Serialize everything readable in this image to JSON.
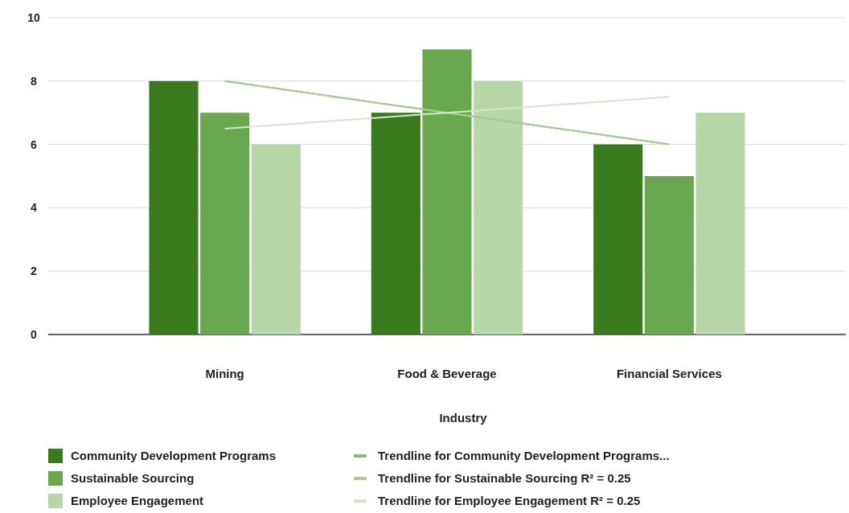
{
  "chart_data": {
    "type": "bar",
    "xlabel": "Industry",
    "categories": [
      "Mining",
      "Food & Beverage",
      "Financial Services"
    ],
    "series": [
      {
        "name": "Community Development Programs",
        "color": "#3a7a1f",
        "values": [
          8,
          7,
          6
        ]
      },
      {
        "name": "Sustainable Sourcing",
        "color": "#6aa84f",
        "values": [
          7,
          9,
          5
        ]
      },
      {
        "name": "Employee Engagement",
        "color": "#b6d7a8",
        "values": [
          6,
          8,
          7
        ]
      },
      {
        "name": "Trendline for Community Development Programs...",
        "type": "line",
        "color": "#8db87a",
        "values": [
          8,
          7,
          6
        ]
      },
      {
        "name": "Trendline for Sustainable Sourcing R² = 0.25",
        "type": "line",
        "color": "#a9cc98",
        "values": [
          8,
          7,
          6
        ]
      },
      {
        "name": "Trendline for Employee Engagement R² = 0.25",
        "type": "line",
        "color": "#d6e6cc",
        "values": [
          6.5,
          7,
          7.5
        ]
      }
    ],
    "ylim": [
      0,
      10
    ],
    "yticks": [
      0,
      2,
      4,
      6,
      8,
      10
    ],
    "grid": "y",
    "legend": "bottom"
  }
}
